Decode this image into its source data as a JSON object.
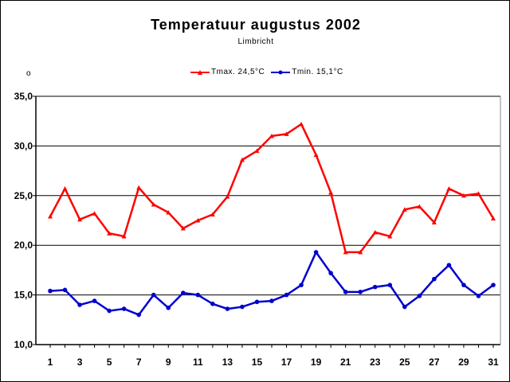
{
  "chart_data": {
    "type": "line",
    "title": "Temperatuur augustus 2002",
    "subtitle": "Limbricht",
    "ylabel": "o",
    "xlabel": "",
    "x": [
      1,
      2,
      3,
      4,
      5,
      6,
      7,
      8,
      9,
      10,
      11,
      12,
      13,
      14,
      15,
      16,
      17,
      18,
      19,
      20,
      21,
      22,
      23,
      24,
      25,
      26,
      27,
      28,
      29,
      30,
      31
    ],
    "xticks": [
      "1",
      "3",
      "5",
      "7",
      "9",
      "11",
      "13",
      "15",
      "17",
      "19",
      "21",
      "23",
      "25",
      "27",
      "29",
      "31"
    ],
    "ylim": [
      10,
      35
    ],
    "yticks": [
      "10,0",
      "15,0",
      "20,0",
      "25,0",
      "30,0",
      "35,0"
    ],
    "grid": true,
    "legend_position": "top",
    "series": [
      {
        "name": "Tmax. 24,5°C",
        "color": "#ff0000",
        "marker": "triangle",
        "values": [
          22.9,
          25.7,
          22.6,
          23.2,
          21.2,
          20.9,
          25.8,
          24.1,
          23.3,
          21.7,
          22.5,
          23.1,
          24.9,
          28.6,
          29.5,
          31.0,
          31.2,
          32.2,
          29.1,
          25.3,
          19.3,
          19.3,
          21.3,
          20.9,
          23.6,
          23.9,
          22.3,
          25.7,
          25.0,
          25.2,
          22.7
        ]
      },
      {
        "name": "Tmin. 15,1°C",
        "color": "#0000cc",
        "marker": "circle",
        "values": [
          15.4,
          15.5,
          14.0,
          14.4,
          13.4,
          13.6,
          13.0,
          15.0,
          13.7,
          15.2,
          15.0,
          14.1,
          13.6,
          13.8,
          14.3,
          14.4,
          15.0,
          16.0,
          19.3,
          17.2,
          15.3,
          15.3,
          15.8,
          16.0,
          13.8,
          14.9,
          16.6,
          18.0,
          16.0,
          14.9,
          16.0
        ]
      }
    ]
  }
}
